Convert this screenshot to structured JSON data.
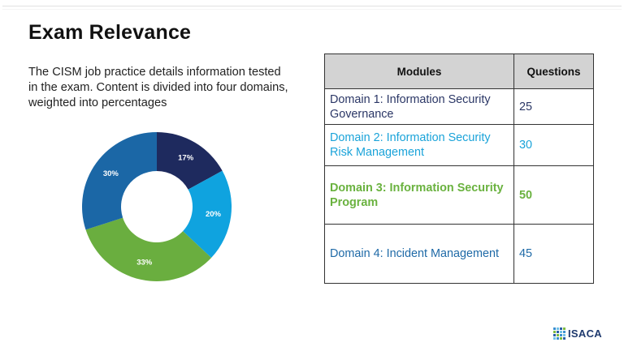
{
  "slide": {
    "title": "Exam Relevance",
    "intro": "The CISM job practice details information tested in the exam. Content is divided into four domains, weighted into percentages"
  },
  "chart_data": {
    "type": "pie",
    "subtype": "donut",
    "title": "",
    "categories": [
      "Domain 1",
      "Domain 2",
      "Domain 3",
      "Domain 4"
    ],
    "values": [
      17,
      20,
      33,
      30
    ],
    "labels": [
      "17%",
      "20%",
      "33%",
      "30%"
    ],
    "colors": [
      "#1e2a5e",
      "#0fa3df",
      "#6aae3f",
      "#1b67a6"
    ],
    "start_angle": "12 o'clock",
    "direction": "clockwise",
    "legend": "none"
  },
  "table": {
    "headers": [
      "Modules",
      "Questions"
    ],
    "rows": [
      {
        "module": "Domain 1: Information Security Governance",
        "questions": "25",
        "color": "#2b3766"
      },
      {
        "module": "Domain 2: Information Security Risk Management",
        "questions": "30",
        "color": "#1aa3d9"
      },
      {
        "module": "Domain 3: Information Security Program",
        "questions": "50",
        "color": "#6ab23f"
      },
      {
        "module": "Domain 4: Incident Management",
        "questions": "45",
        "color": "#1f6aa7"
      }
    ]
  },
  "footer": {
    "logo_text": "ISACA",
    "logo_icon": "isaca-mosaic-icon"
  }
}
